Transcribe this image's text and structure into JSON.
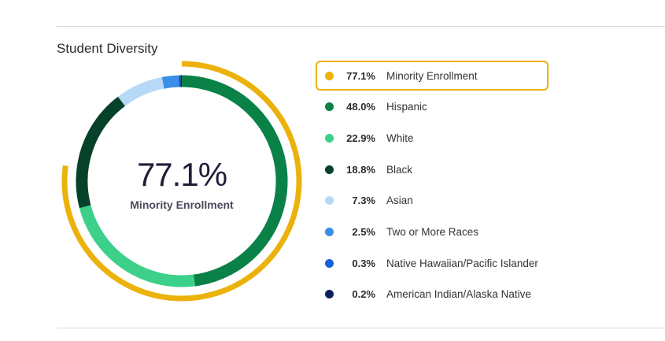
{
  "title": "Student Diversity",
  "center": {
    "value": "77.1%",
    "label": "Minority Enrollment"
  },
  "chart_data": {
    "type": "pie",
    "style": "donut",
    "outer_ring": {
      "label": "Minority Enrollment",
      "value": 77.1,
      "color": "#ebb20c"
    },
    "slices": [
      {
        "label": "Hispanic",
        "value": 48.0,
        "color": "#0a8147"
      },
      {
        "label": "White",
        "value": 22.9,
        "color": "#3dd08b"
      },
      {
        "label": "Black",
        "value": 18.8,
        "color": "#06422a"
      },
      {
        "label": "Asian",
        "value": 7.3,
        "color": "#b6d9f7"
      },
      {
        "label": "Two or More Races",
        "value": 2.5,
        "color": "#3a8ee6"
      },
      {
        "label": "Native Hawaiian/Pacific Islander",
        "value": 0.3,
        "color": "#1462d8"
      },
      {
        "label": "American Indian/Alaska Native",
        "value": 0.2,
        "color": "#0c1f63"
      }
    ]
  },
  "legend": [
    {
      "pct": "77.1%",
      "label": "Minority Enrollment",
      "color": "#ebb20c",
      "selected": true
    },
    {
      "pct": "48.0%",
      "label": "Hispanic",
      "color": "#0a8147"
    },
    {
      "pct": "22.9%",
      "label": "White",
      "color": "#3dd08b"
    },
    {
      "pct": "18.8%",
      "label": "Black",
      "color": "#06422a"
    },
    {
      "pct": "7.3%",
      "label": "Asian",
      "color": "#b6d9f7"
    },
    {
      "pct": "2.5%",
      "label": "Two or More Races",
      "color": "#3a8ee6"
    },
    {
      "pct": "0.3%",
      "label": "Native Hawaiian/Pacific Islander",
      "color": "#1462d8"
    },
    {
      "pct": "0.2%",
      "label": "American Indian/Alaska Native",
      "color": "#0c1f63"
    }
  ]
}
